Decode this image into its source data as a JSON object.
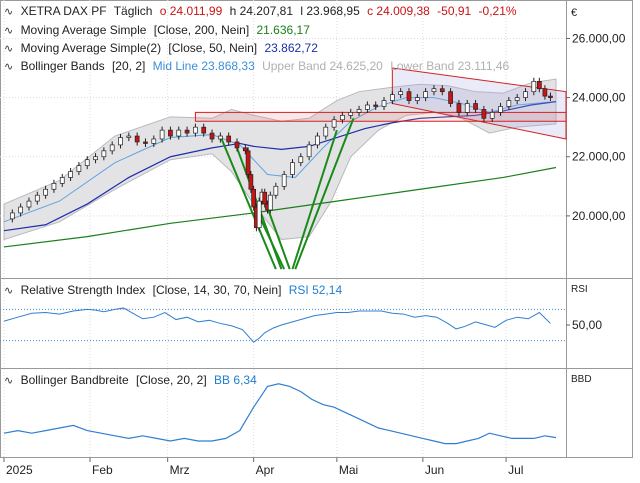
{
  "chart_data": [
    {
      "type": "line",
      "panel": "price",
      "instrument": "XETRA DAX PF",
      "interval": "Täglich",
      "ohlc_label": {
        "open": "o 24.011,99",
        "high": "h 24.207,81",
        "low": "l 23.968,95",
        "close": "c 24.009,38",
        "change": "-50,91",
        "change_pct": "-0,21%"
      },
      "overlays": [
        {
          "label": "Moving Average Simple",
          "params": "[Close, 200, Nein]",
          "value": "21.636,17",
          "color": "#1a7f1a"
        },
        {
          "label": "Moving Average Simple(2)",
          "params": "[Close, 50, Nein]",
          "value": "23.862,72",
          "color": "#1f2fa8"
        },
        {
          "label": "Bollinger Bands",
          "params": "[20, 2]",
          "mid": "Mid Line 23.868,33",
          "upper": "Upper Band 24.625,20",
          "lower": "Lower Band 23.111,46",
          "mid_color": "#3b8fd9",
          "band_text_color": "#b0b0b0"
        }
      ],
      "currency_label": "€",
      "y_ticks": [
        "26.000,00",
        "24.000,00",
        "22.000,00",
        "20.000,00"
      ],
      "y_tick_values": [
        26000,
        24000,
        22000,
        20000
      ],
      "ylim": [
        17900,
        27300
      ],
      "x_ticks": [
        "2025",
        "Feb",
        "Mrz",
        "Apr",
        "Mai",
        "Jun",
        "Jul"
      ],
      "x_tick_days": [
        0,
        31,
        59,
        90,
        120,
        151,
        181
      ],
      "x_range_days": [
        0,
        199
      ],
      "close": [
        [
          0,
          19900
        ],
        [
          3,
          20100
        ],
        [
          6,
          20300
        ],
        [
          9,
          20500
        ],
        [
          12,
          20700
        ],
        [
          15,
          20900
        ],
        [
          18,
          21100
        ],
        [
          21,
          21300
        ],
        [
          24,
          21500
        ],
        [
          27,
          21700
        ],
        [
          30,
          21900
        ],
        [
          33,
          22000
        ],
        [
          36,
          22200
        ],
        [
          39,
          22400
        ],
        [
          42,
          22650
        ],
        [
          45,
          22700
        ],
        [
          48,
          22500
        ],
        [
          51,
          22450
        ],
        [
          54,
          22600
        ],
        [
          57,
          22900
        ],
        [
          60,
          22700
        ],
        [
          63,
          22900
        ],
        [
          66,
          22800
        ],
        [
          69,
          23000
        ],
        [
          72,
          22800
        ],
        [
          75,
          22600
        ],
        [
          78,
          22700
        ],
        [
          81,
          22500
        ],
        [
          84,
          22300
        ],
        [
          87,
          22200
        ],
        [
          88,
          21400
        ],
        [
          89,
          20900
        ],
        [
          90,
          20300
        ],
        [
          91,
          19600
        ],
        [
          92,
          20500
        ],
        [
          93,
          20800
        ],
        [
          94,
          20400
        ],
        [
          95,
          20200
        ],
        [
          96,
          20700
        ],
        [
          98,
          21000
        ],
        [
          101,
          21400
        ],
        [
          104,
          21800
        ],
        [
          107,
          22000
        ],
        [
          110,
          22400
        ],
        [
          113,
          22700
        ],
        [
          116,
          23000
        ],
        [
          119,
          23250
        ],
        [
          122,
          23400
        ],
        [
          125,
          23500
        ],
        [
          128,
          23600
        ],
        [
          131,
          23750
        ],
        [
          134,
          23700
        ],
        [
          137,
          23900
        ],
        [
          140,
          24100
        ],
        [
          143,
          24200
        ],
        [
          146,
          23900
        ],
        [
          149,
          24000
        ],
        [
          152,
          24200
        ],
        [
          155,
          24300
        ],
        [
          158,
          24200
        ],
        [
          161,
          23800
        ],
        [
          164,
          23500
        ],
        [
          167,
          23800
        ],
        [
          170,
          23600
        ],
        [
          173,
          23300
        ],
        [
          176,
          23500
        ],
        [
          179,
          23700
        ],
        [
          182,
          23900
        ],
        [
          185,
          24000
        ],
        [
          188,
          24200
        ],
        [
          191,
          24550
        ],
        [
          193,
          24300
        ],
        [
          195,
          24050
        ],
        [
          197,
          24009
        ]
      ],
      "ma200": [
        [
          0,
          18950
        ],
        [
          30,
          19300
        ],
        [
          60,
          19750
        ],
        [
          90,
          20100
        ],
        [
          120,
          20500
        ],
        [
          150,
          20900
        ],
        [
          180,
          21300
        ],
        [
          199,
          21636
        ]
      ],
      "ma50": [
        [
          0,
          19500
        ],
        [
          15,
          19700
        ],
        [
          30,
          20400
        ],
        [
          45,
          21300
        ],
        [
          60,
          22000
        ],
        [
          75,
          22300
        ],
        [
          85,
          22450
        ],
        [
          90,
          22350
        ],
        [
          100,
          22250
        ],
        [
          110,
          22350
        ],
        [
          120,
          22650
        ],
        [
          130,
          22950
        ],
        [
          140,
          23150
        ],
        [
          150,
          23300
        ],
        [
          160,
          23350
        ],
        [
          170,
          23400
        ],
        [
          180,
          23550
        ],
        [
          190,
          23750
        ],
        [
          199,
          23863
        ]
      ],
      "bb_mid": [
        [
          0,
          19800
        ],
        [
          20,
          20500
        ],
        [
          40,
          21800
        ],
        [
          60,
          22650
        ],
        [
          75,
          22750
        ],
        [
          85,
          22400
        ],
        [
          95,
          21400
        ],
        [
          105,
          21300
        ],
        [
          115,
          22300
        ],
        [
          125,
          23200
        ],
        [
          135,
          23700
        ],
        [
          145,
          24000
        ],
        [
          155,
          24000
        ],
        [
          165,
          23800
        ],
        [
          175,
          23500
        ],
        [
          185,
          23750
        ],
        [
          199,
          23868
        ]
      ],
      "bb_upper": [
        [
          0,
          20400
        ],
        [
          20,
          21200
        ],
        [
          40,
          22700
        ],
        [
          60,
          23350
        ],
        [
          75,
          23300
        ],
        [
          82,
          23600
        ],
        [
          90,
          23400
        ],
        [
          100,
          23200
        ],
        [
          110,
          23300
        ],
        [
          120,
          23900
        ],
        [
          128,
          24200
        ],
        [
          140,
          24350
        ],
        [
          150,
          24450
        ],
        [
          160,
          24400
        ],
        [
          170,
          24200
        ],
        [
          180,
          24150
        ],
        [
          190,
          24500
        ],
        [
          199,
          24625
        ]
      ],
      "bb_lower": [
        [
          0,
          19200
        ],
        [
          20,
          19800
        ],
        [
          40,
          20900
        ],
        [
          60,
          21900
        ],
        [
          75,
          22100
        ],
        [
          82,
          21500
        ],
        [
          90,
          20400
        ],
        [
          100,
          19200
        ],
        [
          110,
          19300
        ],
        [
          118,
          20500
        ],
        [
          125,
          22000
        ],
        [
          135,
          22900
        ],
        [
          145,
          23400
        ],
        [
          155,
          23500
        ],
        [
          165,
          23300
        ],
        [
          175,
          22800
        ],
        [
          185,
          23000
        ],
        [
          199,
          23111
        ]
      ]
    },
    {
      "type": "line",
      "panel": "rsi",
      "label": "Relative Strength Index",
      "params": "[Close, 14, 30, 70, Nein]",
      "value": "RSI 52,14",
      "value_color": "#1e7fd1",
      "axis_label": "RSI",
      "y_ticks": [
        "50,00"
      ],
      "y_tick_values": [
        50
      ],
      "ylim": [
        0,
        100
      ],
      "levels": [
        30,
        70
      ],
      "values": [
        [
          0,
          55
        ],
        [
          5,
          60
        ],
        [
          10,
          65
        ],
        [
          15,
          66
        ],
        [
          20,
          64
        ],
        [
          25,
          68
        ],
        [
          30,
          70
        ],
        [
          33,
          69
        ],
        [
          36,
          67
        ],
        [
          40,
          70
        ],
        [
          43,
          72
        ],
        [
          46,
          66
        ],
        [
          50,
          58
        ],
        [
          54,
          60
        ],
        [
          58,
          66
        ],
        [
          62,
          57
        ],
        [
          66,
          60
        ],
        [
          70,
          54
        ],
        [
          74,
          56
        ],
        [
          78,
          52
        ],
        [
          82,
          49
        ],
        [
          86,
          44
        ],
        [
          88,
          36
        ],
        [
          90,
          28
        ],
        [
          92,
          33
        ],
        [
          94,
          40
        ],
        [
          97,
          46
        ],
        [
          100,
          50
        ],
        [
          104,
          54
        ],
        [
          108,
          58
        ],
        [
          112,
          62
        ],
        [
          116,
          64
        ],
        [
          120,
          66
        ],
        [
          124,
          66
        ],
        [
          128,
          68
        ],
        [
          132,
          68
        ],
        [
          136,
          68
        ],
        [
          140,
          65
        ],
        [
          144,
          64
        ],
        [
          148,
          60
        ],
        [
          152,
          62
        ],
        [
          156,
          60
        ],
        [
          160,
          52
        ],
        [
          163,
          45
        ],
        [
          166,
          48
        ],
        [
          170,
          54
        ],
        [
          174,
          50
        ],
        [
          177,
          47
        ],
        [
          181,
          56
        ],
        [
          185,
          60
        ],
        [
          189,
          58
        ],
        [
          193,
          66
        ],
        [
          197,
          52
        ]
      ]
    },
    {
      "type": "line",
      "panel": "bb_width",
      "label": "Bollinger Bandbreite",
      "params": "[Close, 20, 2]",
      "value": "BB 6,34",
      "value_color": "#1e7fd1",
      "axis_label": "BBD",
      "ylim": [
        0,
        30
      ],
      "values": [
        [
          0,
          8
        ],
        [
          5,
          9
        ],
        [
          10,
          8
        ],
        [
          15,
          9
        ],
        [
          20,
          10
        ],
        [
          25,
          11
        ],
        [
          30,
          9
        ],
        [
          35,
          8
        ],
        [
          40,
          7
        ],
        [
          45,
          6
        ],
        [
          50,
          7
        ],
        [
          55,
          6
        ],
        [
          60,
          5
        ],
        [
          65,
          6
        ],
        [
          70,
          5
        ],
        [
          75,
          5
        ],
        [
          80,
          6
        ],
        [
          85,
          9
        ],
        [
          90,
          18
        ],
        [
          95,
          26
        ],
        [
          99,
          27
        ],
        [
          103,
          26
        ],
        [
          107,
          24
        ],
        [
          111,
          21
        ],
        [
          115,
          19
        ],
        [
          119,
          18
        ],
        [
          123,
          16
        ],
        [
          127,
          14
        ],
        [
          131,
          12
        ],
        [
          135,
          10
        ],
        [
          139,
          9
        ],
        [
          143,
          8
        ],
        [
          147,
          7
        ],
        [
          151,
          6
        ],
        [
          155,
          5
        ],
        [
          159,
          4
        ],
        [
          163,
          4
        ],
        [
          167,
          5
        ],
        [
          171,
          6
        ],
        [
          175,
          8
        ],
        [
          179,
          7
        ],
        [
          183,
          6
        ],
        [
          187,
          6
        ],
        [
          191,
          6
        ],
        [
          195,
          7
        ],
        [
          199,
          6.3
        ]
      ]
    }
  ]
}
